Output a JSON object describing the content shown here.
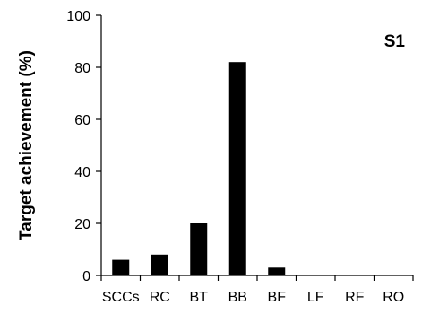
{
  "chart_data": {
    "type": "bar",
    "categories": [
      "SCCs",
      "RC",
      "BT",
      "BB",
      "BF",
      "LF",
      "RF",
      "RO"
    ],
    "values": [
      6,
      8,
      20,
      82,
      3,
      0,
      0,
      0
    ],
    "ylabel": "Target achievement (%)",
    "xlabel": "",
    "ylim": [
      0,
      100
    ],
    "yticks": [
      0,
      20,
      40,
      60,
      80,
      100
    ],
    "annotation": "S1",
    "grid": false,
    "bar_color": "#000000"
  }
}
